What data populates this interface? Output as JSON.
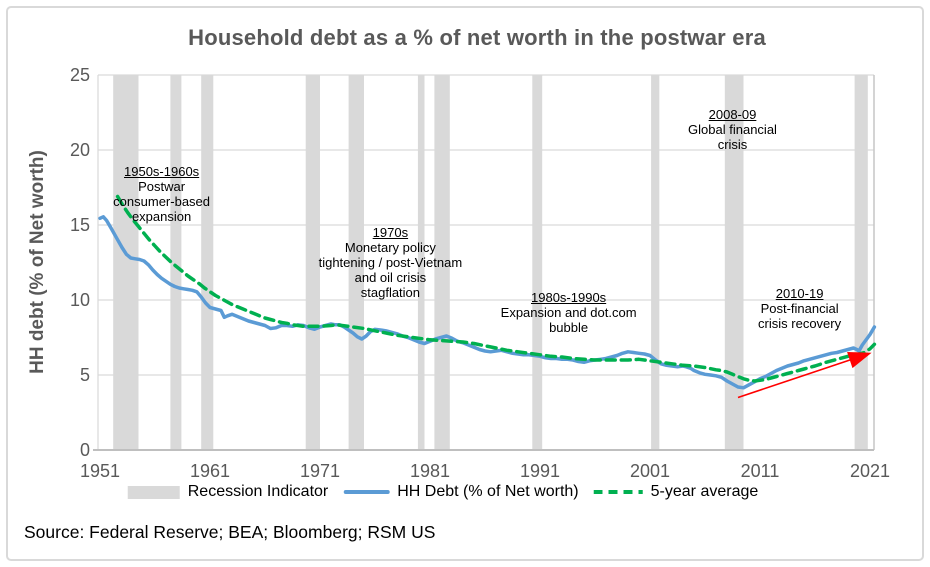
{
  "title": "Household debt as a % of net worth in the postwar era",
  "source": "Source: Federal Reserve; BEA; Bloomberg; RSM US",
  "y_axis": {
    "title": "HH debt (% of Net worth)",
    "ticks": [
      25,
      20,
      15,
      10,
      5,
      0
    ]
  },
  "x_axis": {
    "ticks": [
      1951,
      1961,
      1971,
      1981,
      1991,
      2001,
      2011,
      2021
    ]
  },
  "legend": [
    {
      "id": "recession",
      "swatch": "bar",
      "label": "Recession Indicator"
    },
    {
      "id": "hh-debt",
      "swatch": "line",
      "label": "HH Debt (% of Net worth)"
    },
    {
      "id": "avg",
      "swatch": "dash",
      "label": "5-year average"
    }
  ],
  "colors": {
    "hh_debt_line": "#5b9bd5",
    "five_year_avg": "#00b050",
    "recession_bar": "#d9d9d9",
    "gridline": "#d9d9d9",
    "axis_line": "#bfbfbf",
    "text_gray": "#595959",
    "trend_arrow": "#ff0000"
  },
  "chart_data": {
    "type": "line",
    "title": "Household debt as a % of net worth in the postwar era",
    "xlabel": "",
    "ylabel": "HH debt (% of Net worth)",
    "xlim": [
      1950.8,
      2021.5
    ],
    "ylim": [
      0,
      25
    ],
    "x_ticks": [
      1951,
      1961,
      1971,
      1981,
      1991,
      2001,
      2011,
      2021
    ],
    "y_ticks": [
      0,
      5,
      10,
      15,
      20,
      25
    ],
    "grid": true,
    "legend_position": "bottom",
    "series": [
      {
        "name": "HH Debt (% of Net worth)",
        "style": "solid",
        "color": "#5b9bd5",
        "points": [
          [
            1951.0,
            15.45
          ],
          [
            1951.3,
            15.55
          ],
          [
            1951.6,
            15.3
          ],
          [
            1952.0,
            14.8
          ],
          [
            1952.5,
            14.15
          ],
          [
            1953.0,
            13.5
          ],
          [
            1953.4,
            13.05
          ],
          [
            1953.8,
            12.8
          ],
          [
            1954.2,
            12.75
          ],
          [
            1954.6,
            12.7
          ],
          [
            1955.0,
            12.6
          ],
          [
            1955.4,
            12.35
          ],
          [
            1955.8,
            12.0
          ],
          [
            1956.2,
            11.7
          ],
          [
            1956.6,
            11.45
          ],
          [
            1957.0,
            11.25
          ],
          [
            1957.4,
            11.05
          ],
          [
            1957.8,
            10.9
          ],
          [
            1958.2,
            10.8
          ],
          [
            1958.6,
            10.75
          ],
          [
            1959.0,
            10.7
          ],
          [
            1959.4,
            10.65
          ],
          [
            1959.8,
            10.55
          ],
          [
            1960.2,
            10.2
          ],
          [
            1960.6,
            9.8
          ],
          [
            1961.0,
            9.5
          ],
          [
            1961.5,
            9.4
          ],
          [
            1962.0,
            9.3
          ],
          [
            1962.3,
            8.85
          ],
          [
            1962.6,
            8.95
          ],
          [
            1963.0,
            9.05
          ],
          [
            1963.5,
            8.9
          ],
          [
            1964.0,
            8.75
          ],
          [
            1964.5,
            8.6
          ],
          [
            1965.0,
            8.5
          ],
          [
            1965.5,
            8.4
          ],
          [
            1966.0,
            8.3
          ],
          [
            1966.5,
            8.1
          ],
          [
            1967.0,
            8.15
          ],
          [
            1967.5,
            8.3
          ],
          [
            1968.0,
            8.3
          ],
          [
            1968.5,
            8.25
          ],
          [
            1969.0,
            8.35
          ],
          [
            1969.5,
            8.3
          ],
          [
            1970.0,
            8.15
          ],
          [
            1970.5,
            8.05
          ],
          [
            1971.0,
            8.2
          ],
          [
            1971.5,
            8.3
          ],
          [
            1972.0,
            8.4
          ],
          [
            1972.4,
            8.35
          ],
          [
            1972.8,
            8.35
          ],
          [
            1973.2,
            8.2
          ],
          [
            1973.6,
            8.0
          ],
          [
            1974.0,
            7.8
          ],
          [
            1974.4,
            7.55
          ],
          [
            1974.8,
            7.4
          ],
          [
            1975.2,
            7.6
          ],
          [
            1975.6,
            7.9
          ],
          [
            1976.0,
            8.05
          ],
          [
            1976.5,
            8.0
          ],
          [
            1977.0,
            7.95
          ],
          [
            1977.5,
            7.85
          ],
          [
            1978.0,
            7.75
          ],
          [
            1978.5,
            7.6
          ],
          [
            1979.0,
            7.5
          ],
          [
            1979.5,
            7.35
          ],
          [
            1980.0,
            7.2
          ],
          [
            1980.5,
            7.1
          ],
          [
            1981.0,
            7.25
          ],
          [
            1981.5,
            7.4
          ],
          [
            1982.0,
            7.5
          ],
          [
            1982.5,
            7.6
          ],
          [
            1983.0,
            7.45
          ],
          [
            1983.5,
            7.25
          ],
          [
            1984.0,
            7.15
          ],
          [
            1984.5,
            7.0
          ],
          [
            1985.0,
            6.85
          ],
          [
            1985.5,
            6.7
          ],
          [
            1986.0,
            6.6
          ],
          [
            1986.5,
            6.55
          ],
          [
            1987.0,
            6.6
          ],
          [
            1987.5,
            6.65
          ],
          [
            1988.0,
            6.55
          ],
          [
            1988.5,
            6.45
          ],
          [
            1989.0,
            6.4
          ],
          [
            1989.5,
            6.35
          ],
          [
            1990.0,
            6.35
          ],
          [
            1990.5,
            6.3
          ],
          [
            1991.0,
            6.25
          ],
          [
            1991.5,
            6.15
          ],
          [
            1992.0,
            6.1
          ],
          [
            1992.5,
            6.1
          ],
          [
            1993.0,
            6.05
          ],
          [
            1993.5,
            6.05
          ],
          [
            1994.0,
            6.0
          ],
          [
            1994.5,
            5.9
          ],
          [
            1995.0,
            5.85
          ],
          [
            1995.5,
            5.95
          ],
          [
            1996.0,
            6.0
          ],
          [
            1996.5,
            6.05
          ],
          [
            1997.0,
            6.1
          ],
          [
            1997.5,
            6.2
          ],
          [
            1998.0,
            6.3
          ],
          [
            1998.5,
            6.45
          ],
          [
            1999.0,
            6.55
          ],
          [
            1999.5,
            6.5
          ],
          [
            2000.0,
            6.45
          ],
          [
            2000.5,
            6.4
          ],
          [
            2001.0,
            6.3
          ],
          [
            2001.5,
            6.0
          ],
          [
            2002.0,
            5.75
          ],
          [
            2002.5,
            5.65
          ],
          [
            2003.0,
            5.6
          ],
          [
            2003.5,
            5.55
          ],
          [
            2004.0,
            5.6
          ],
          [
            2004.3,
            5.55
          ],
          [
            2004.7,
            5.45
          ],
          [
            2005.0,
            5.3
          ],
          [
            2005.5,
            5.15
          ],
          [
            2006.0,
            5.05
          ],
          [
            2006.5,
            5.0
          ],
          [
            2007.0,
            4.95
          ],
          [
            2007.5,
            4.85
          ],
          [
            2008.0,
            4.6
          ],
          [
            2008.5,
            4.4
          ],
          [
            2009.0,
            4.2
          ],
          [
            2009.5,
            4.15
          ],
          [
            2010.0,
            4.35
          ],
          [
            2010.5,
            4.55
          ],
          [
            2011.0,
            4.75
          ],
          [
            2011.5,
            4.9
          ],
          [
            2012.0,
            5.1
          ],
          [
            2012.5,
            5.3
          ],
          [
            2013.0,
            5.45
          ],
          [
            2013.5,
            5.6
          ],
          [
            2014.0,
            5.7
          ],
          [
            2014.5,
            5.8
          ],
          [
            2015.0,
            5.95
          ],
          [
            2015.5,
            6.05
          ],
          [
            2016.0,
            6.15
          ],
          [
            2016.5,
            6.25
          ],
          [
            2017.0,
            6.35
          ],
          [
            2017.5,
            6.45
          ],
          [
            2018.0,
            6.5
          ],
          [
            2018.5,
            6.6
          ],
          [
            2019.0,
            6.7
          ],
          [
            2019.5,
            6.8
          ],
          [
            2019.8,
            6.7
          ],
          [
            2020.0,
            6.6
          ],
          [
            2020.3,
            7.0
          ],
          [
            2020.6,
            7.3
          ],
          [
            2021.0,
            7.7
          ],
          [
            2021.4,
            8.2
          ]
        ]
      },
      {
        "name": "5-year average",
        "style": "dashed",
        "color": "#00b050",
        "points": [
          [
            1952.6,
            16.9
          ],
          [
            1953.0,
            16.4
          ],
          [
            1953.5,
            15.85
          ],
          [
            1954.0,
            15.35
          ],
          [
            1954.5,
            14.9
          ],
          [
            1955.0,
            14.45
          ],
          [
            1955.5,
            14.0
          ],
          [
            1956.0,
            13.6
          ],
          [
            1956.5,
            13.2
          ],
          [
            1957.0,
            12.85
          ],
          [
            1957.5,
            12.5
          ],
          [
            1958.0,
            12.2
          ],
          [
            1958.5,
            11.9
          ],
          [
            1959.0,
            11.6
          ],
          [
            1959.5,
            11.35
          ],
          [
            1960.0,
            11.1
          ],
          [
            1960.5,
            10.8
          ],
          [
            1961.0,
            10.55
          ],
          [
            1961.5,
            10.3
          ],
          [
            1962.0,
            10.1
          ],
          [
            1962.5,
            9.9
          ],
          [
            1963.0,
            9.7
          ],
          [
            1963.5,
            9.55
          ],
          [
            1964.0,
            9.4
          ],
          [
            1964.5,
            9.25
          ],
          [
            1965.0,
            9.1
          ],
          [
            1965.5,
            8.95
          ],
          [
            1966.0,
            8.8
          ],
          [
            1966.5,
            8.7
          ],
          [
            1967.0,
            8.6
          ],
          [
            1967.5,
            8.5
          ],
          [
            1968.0,
            8.45
          ],
          [
            1968.5,
            8.35
          ],
          [
            1969.0,
            8.3
          ],
          [
            1969.5,
            8.25
          ],
          [
            1970.0,
            8.25
          ],
          [
            1971.0,
            8.25
          ],
          [
            1972.0,
            8.3
          ],
          [
            1972.5,
            8.35
          ],
          [
            1973.0,
            8.3
          ],
          [
            1974.0,
            8.2
          ],
          [
            1975.0,
            8.1
          ],
          [
            1976.0,
            7.95
          ],
          [
            1977.0,
            7.8
          ],
          [
            1978.0,
            7.65
          ],
          [
            1979.0,
            7.55
          ],
          [
            1980.0,
            7.45
          ],
          [
            1981.0,
            7.35
          ],
          [
            1982.0,
            7.3
          ],
          [
            1983.0,
            7.25
          ],
          [
            1984.0,
            7.2
          ],
          [
            1985.0,
            7.1
          ],
          [
            1986.0,
            6.95
          ],
          [
            1987.0,
            6.8
          ],
          [
            1988.0,
            6.65
          ],
          [
            1989.0,
            6.55
          ],
          [
            1990.0,
            6.45
          ],
          [
            1991.0,
            6.35
          ],
          [
            1992.0,
            6.25
          ],
          [
            1993.0,
            6.2
          ],
          [
            1994.0,
            6.1
          ],
          [
            1995.0,
            6.05
          ],
          [
            1996.0,
            6.0
          ],
          [
            1997.0,
            6.0
          ],
          [
            1998.0,
            6.0
          ],
          [
            1999.0,
            6.0
          ],
          [
            2000.0,
            6.05
          ],
          [
            2001.0,
            5.95
          ],
          [
            2002.0,
            5.85
          ],
          [
            2003.0,
            5.75
          ],
          [
            2004.0,
            5.65
          ],
          [
            2005.0,
            5.6
          ],
          [
            2006.0,
            5.5
          ],
          [
            2007.0,
            5.35
          ],
          [
            2007.5,
            5.3
          ],
          [
            2008.0,
            5.2
          ],
          [
            2008.5,
            5.05
          ],
          [
            2009.0,
            4.9
          ],
          [
            2009.5,
            4.75
          ],
          [
            2010.0,
            4.65
          ],
          [
            2010.5,
            4.6
          ],
          [
            2011.0,
            4.65
          ],
          [
            2011.5,
            4.7
          ],
          [
            2012.0,
            4.8
          ],
          [
            2012.5,
            4.9
          ],
          [
            2013.0,
            5.0
          ],
          [
            2013.5,
            5.1
          ],
          [
            2014.0,
            5.2
          ],
          [
            2014.5,
            5.3
          ],
          [
            2015.0,
            5.4
          ],
          [
            2015.5,
            5.5
          ],
          [
            2016.0,
            5.6
          ],
          [
            2016.5,
            5.72
          ],
          [
            2017.0,
            5.85
          ],
          [
            2017.5,
            5.95
          ],
          [
            2018.0,
            6.05
          ],
          [
            2018.5,
            6.15
          ],
          [
            2019.0,
            6.25
          ],
          [
            2019.5,
            6.35
          ],
          [
            2020.0,
            6.4
          ],
          [
            2020.5,
            6.5
          ],
          [
            2021.0,
            6.75
          ],
          [
            2021.4,
            7.05
          ]
        ]
      }
    ],
    "recessions": {
      "name": "Recession Indicator",
      "color": "#d9d9d9",
      "spans": [
        [
          1952.2,
          1954.5
        ],
        [
          1957.4,
          1958.4
        ],
        [
          1960.2,
          1961.3
        ],
        [
          1969.7,
          1971.0
        ],
        [
          1973.6,
          1975.0
        ],
        [
          1979.9,
          1980.5
        ],
        [
          1981.4,
          1982.8
        ],
        [
          1990.3,
          1991.2
        ],
        [
          2001.1,
          2001.85
        ],
        [
          2007.8,
          2009.5
        ],
        [
          2019.6,
          2020.8
        ]
      ]
    },
    "trend_arrow": {
      "color": "#ff0000",
      "from": [
        2009.0,
        3.5
      ],
      "to": [
        2020.8,
        6.4
      ]
    },
    "annotations": [
      {
        "id": "1950s-1960s",
        "header": "1950s-1960s",
        "lines": [
          "Postwar",
          "consumer-based",
          "expansion"
        ],
        "anchor_year": 1956.6,
        "anchor_value": 19.1
      },
      {
        "id": "1970s",
        "header": "1970s",
        "lines": [
          "Monetary policy",
          "tightening / post-Vietnam",
          "and oil crisis",
          "stagflation"
        ],
        "anchor_year": 1977.4,
        "anchor_value": 15.0
      },
      {
        "id": "1980s-1990s",
        "header": "1980s-1990s",
        "lines": [
          "Expansion and dot.com",
          "bubble"
        ],
        "anchor_year": 1993.6,
        "anchor_value": 10.65
      },
      {
        "id": "2008-09",
        "header": "2008-09",
        "lines": [
          "Global financial",
          "crisis"
        ],
        "anchor_year": 2008.5,
        "anchor_value": 22.85
      },
      {
        "id": "2010-19",
        "header": "2010-19",
        "lines": [
          "Post-financial",
          "crisis recovery"
        ],
        "anchor_year": 2014.6,
        "anchor_value": 10.95
      }
    ]
  }
}
